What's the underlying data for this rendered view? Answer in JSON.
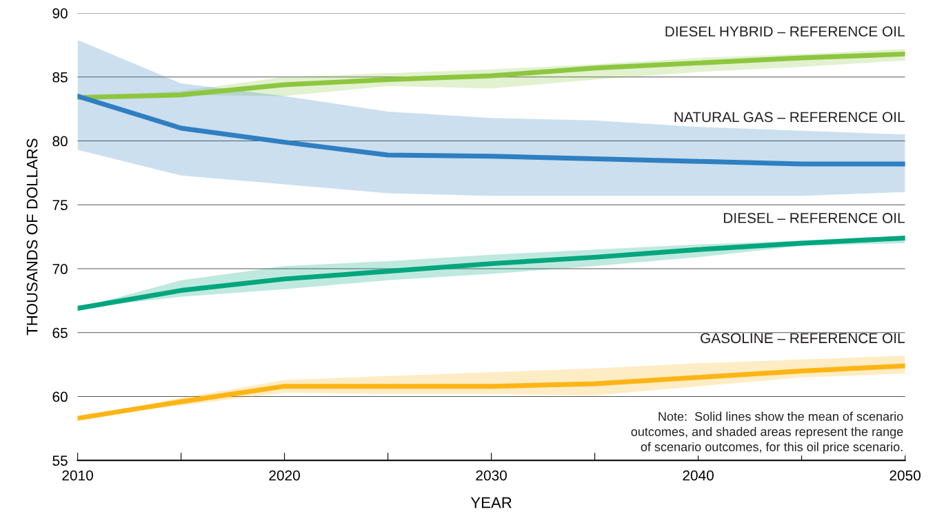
{
  "chart_data": {
    "type": "line",
    "xlabel": "YEAR",
    "ylabel": "THOUSANDS OF DOLLARS",
    "x": [
      2010,
      2015,
      2020,
      2025,
      2030,
      2035,
      2040,
      2045,
      2050
    ],
    "xlim": [
      2010,
      2050
    ],
    "xticks": [
      2010,
      {
        "value": 2015,
        "label": null
      },
      2020,
      {
        "value": 2025,
        "label": null
      },
      2030,
      {
        "value": 2035,
        "label": null
      },
      2040,
      {
        "value": 2045,
        "label": null
      },
      2050
    ],
    "ylim": [
      55,
      90
    ],
    "yticks": [
      55,
      60,
      65,
      70,
      75,
      80,
      85,
      90
    ],
    "grid": "y",
    "legend": false,
    "marker": "none",
    "line_style": "solid",
    "series": [
      {
        "name": "DIESEL HYBRID – REFERENCE OIL",
        "color": "#8dc63f",
        "values": [
          83.4,
          83.6,
          84.4,
          84.8,
          85.1,
          85.7,
          86.1,
          86.5,
          86.8
        ],
        "lower": [
          83.4,
          83.6,
          83.5,
          84.3,
          84.1,
          84.8,
          85.4,
          85.8,
          86.3
        ],
        "upper": [
          83.4,
          83.9,
          85.0,
          85.3,
          85.6,
          86.0,
          86.5,
          86.8,
          87.2
        ]
      },
      {
        "name": "NATURAL GAS – REFERENCE OIL",
        "color": "#2f7fc1",
        "values": [
          83.5,
          81.0,
          79.9,
          78.9,
          78.8,
          78.6,
          78.4,
          78.2,
          78.2
        ],
        "lower": [
          79.3,
          77.3,
          76.6,
          75.9,
          75.7,
          75.7,
          75.7,
          75.7,
          76.0
        ],
        "upper": [
          87.9,
          84.5,
          83.5,
          82.3,
          81.8,
          81.6,
          81.1,
          80.8,
          80.5
        ]
      },
      {
        "name": "DIESEL – REFERENCE OIL",
        "color": "#00a67e",
        "values": [
          66.9,
          68.3,
          69.2,
          69.8,
          70.4,
          70.9,
          71.5,
          72.0,
          72.4
        ],
        "lower": [
          66.9,
          67.8,
          68.4,
          69.1,
          69.6,
          70.2,
          70.9,
          71.8,
          72.0
        ],
        "upper": [
          66.9,
          69.1,
          70.2,
          70.6,
          71.1,
          71.5,
          71.9,
          72.2,
          72.6
        ]
      },
      {
        "name": "GASOLINE – REFERENCE OIL",
        "color": "#fdb515",
        "values": [
          58.3,
          59.6,
          60.8,
          60.8,
          60.8,
          61.0,
          61.5,
          62.0,
          62.4
        ],
        "lower": [
          58.3,
          59.3,
          60.3,
          60.2,
          60.2,
          60.1,
          60.8,
          61.5,
          61.8
        ],
        "upper": [
          58.3,
          59.9,
          61.3,
          61.6,
          61.9,
          62.2,
          62.6,
          62.9,
          63.2
        ]
      }
    ],
    "annotations": [
      "Note:  Solid lines show the mean of scenario\noutcomes, and shaded areas represent the range\nof scenario outcomes, for this oil price scenario."
    ]
  }
}
